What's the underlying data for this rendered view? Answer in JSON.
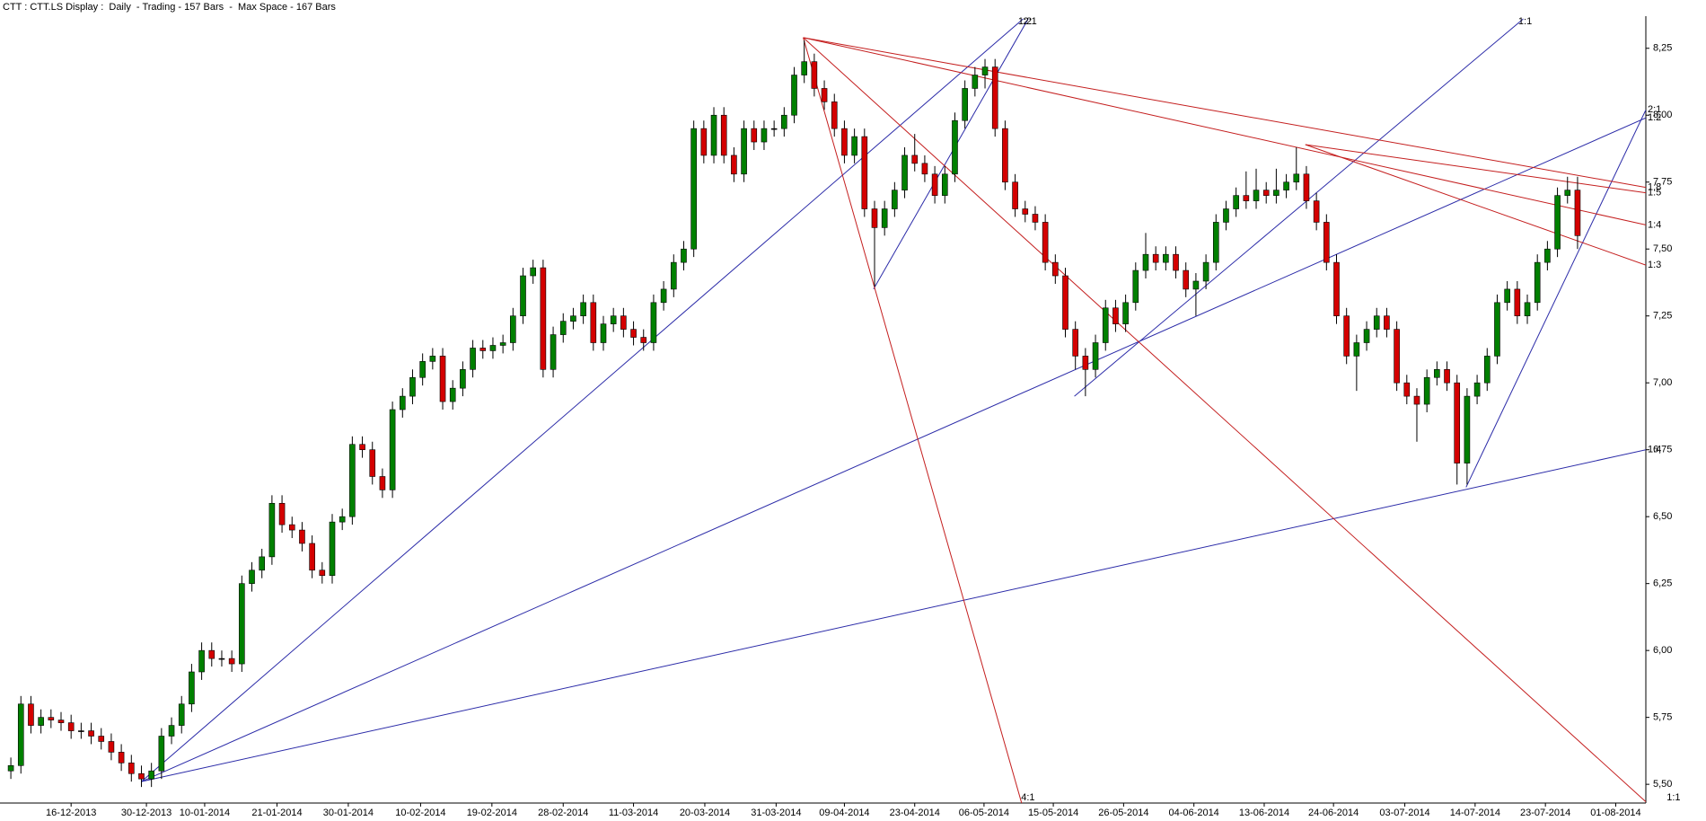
{
  "chart_data": {
    "type": "candlestick",
    "title": "CTT : CTT.LS Display :  Daily  - Trading - 157 Bars  -  Max Space - 167 Bars",
    "up_color": "#008000",
    "down_color": "#d40000",
    "xlim": [
      -1.08,
      162.8
    ],
    "ylim": [
      5.43,
      8.37
    ],
    "yticks": [
      {
        "value": 5.5,
        "label": "5,50"
      },
      {
        "value": 5.75,
        "label": "5,75"
      },
      {
        "value": 6,
        "label": "6,00"
      },
      {
        "value": 6.25,
        "label": "6,25"
      },
      {
        "value": 6.5,
        "label": "6,50"
      },
      {
        "value": 6.75,
        "label": "6,75"
      },
      {
        "value": 7,
        "label": "7,00"
      },
      {
        "value": 7.25,
        "label": "7,25"
      },
      {
        "value": 7.5,
        "label": "7,50"
      },
      {
        "value": 7.75,
        "label": "7,75"
      },
      {
        "value": 8,
        "label": "8,00"
      },
      {
        "value": 8.25,
        "label": "8,25"
      }
    ],
    "xticks": [
      {
        "value": 6,
        "label": "16-12-2013"
      },
      {
        "value": 13.5,
        "label": "30-12-2013"
      },
      {
        "value": 19.3,
        "label": "10-01-2014"
      },
      {
        "value": 26.5,
        "label": "21-01-2014"
      },
      {
        "value": 33.6,
        "label": "30-01-2014"
      },
      {
        "value": 40.8,
        "label": "10-02-2014"
      },
      {
        "value": 47.9,
        "label": "19-02-2014"
      },
      {
        "value": 55,
        "label": "28-02-2014"
      },
      {
        "value": 62,
        "label": "11-03-2014"
      },
      {
        "value": 69.1,
        "label": "20-03-2014"
      },
      {
        "value": 76.2,
        "label": "31-03-2014"
      },
      {
        "value": 83,
        "label": "09-04-2014"
      },
      {
        "value": 90,
        "label": "23-04-2014"
      },
      {
        "value": 96.9,
        "label": "06-05-2014"
      },
      {
        "value": 103.8,
        "label": "15-05-2014"
      },
      {
        "value": 110.8,
        "label": "26-05-2014"
      },
      {
        "value": 117.8,
        "label": "04-06-2014"
      },
      {
        "value": 124.8,
        "label": "13-06-2014"
      },
      {
        "value": 131.7,
        "label": "24-06-2014"
      },
      {
        "value": 138.8,
        "label": "03-07-2014"
      },
      {
        "value": 145.8,
        "label": "14-07-2014"
      },
      {
        "value": 152.8,
        "label": "23-07-2014"
      },
      {
        "value": 159.8,
        "label": "01-08-2014"
      }
    ],
    "ohlc": [
      [
        5.55,
        5.6,
        5.52,
        5.57
      ],
      [
        5.57,
        5.83,
        5.54,
        5.8
      ],
      [
        5.8,
        5.83,
        5.69,
        5.72
      ],
      [
        5.72,
        5.78,
        5.69,
        5.75
      ],
      [
        5.75,
        5.78,
        5.71,
        5.74
      ],
      [
        5.74,
        5.77,
        5.7,
        5.73
      ],
      [
        5.73,
        5.76,
        5.67,
        5.7
      ],
      [
        5.7,
        5.73,
        5.67,
        5.7
      ],
      [
        5.7,
        5.73,
        5.65,
        5.68
      ],
      [
        5.68,
        5.71,
        5.63,
        5.66
      ],
      [
        5.66,
        5.69,
        5.59,
        5.62
      ],
      [
        5.62,
        5.65,
        5.55,
        5.58
      ],
      [
        5.58,
        5.61,
        5.51,
        5.54
      ],
      [
        5.54,
        5.57,
        5.49,
        5.52
      ],
      [
        5.52,
        5.58,
        5.49,
        5.55
      ],
      [
        5.55,
        5.71,
        5.52,
        5.68
      ],
      [
        5.68,
        5.75,
        5.65,
        5.72
      ],
      [
        5.72,
        5.83,
        5.69,
        5.8
      ],
      [
        5.8,
        5.95,
        5.77,
        5.92
      ],
      [
        5.92,
        6.03,
        5.89,
        6
      ],
      [
        6,
        6.03,
        5.94,
        5.97
      ],
      [
        5.97,
        6,
        5.94,
        5.97
      ],
      [
        5.97,
        6,
        5.92,
        5.95
      ],
      [
        5.95,
        6.28,
        5.92,
        6.25
      ],
      [
        6.25,
        6.33,
        6.22,
        6.3
      ],
      [
        6.3,
        6.38,
        6.27,
        6.35
      ],
      [
        6.35,
        6.58,
        6.32,
        6.55
      ],
      [
        6.55,
        6.58,
        6.44,
        6.47
      ],
      [
        6.47,
        6.5,
        6.42,
        6.45
      ],
      [
        6.45,
        6.48,
        6.37,
        6.4
      ],
      [
        6.4,
        6.43,
        6.27,
        6.3
      ],
      [
        6.3,
        6.33,
        6.25,
        6.28
      ],
      [
        6.28,
        6.51,
        6.25,
        6.48
      ],
      [
        6.48,
        6.53,
        6.45,
        6.5
      ],
      [
        6.5,
        6.8,
        6.47,
        6.77
      ],
      [
        6.77,
        6.8,
        6.72,
        6.75
      ],
      [
        6.75,
        6.78,
        6.62,
        6.65
      ],
      [
        6.65,
        6.68,
        6.57,
        6.6
      ],
      [
        6.6,
        6.93,
        6.57,
        6.9
      ],
      [
        6.9,
        6.98,
        6.87,
        6.95
      ],
      [
        6.95,
        7.05,
        6.92,
        7.02
      ],
      [
        7.02,
        7.11,
        6.99,
        7.08
      ],
      [
        7.08,
        7.13,
        7.05,
        7.1
      ],
      [
        7.1,
        7.13,
        6.9,
        6.93
      ],
      [
        6.93,
        7.01,
        6.9,
        6.98
      ],
      [
        6.98,
        7.08,
        6.95,
        7.05
      ],
      [
        7.05,
        7.16,
        7.02,
        7.13
      ],
      [
        7.13,
        7.16,
        7.09,
        7.12
      ],
      [
        7.12,
        7.17,
        7.09,
        7.14
      ],
      [
        7.14,
        7.18,
        7.11,
        7.15
      ],
      [
        7.15,
        7.28,
        7.12,
        7.25
      ],
      [
        7.25,
        7.43,
        7.22,
        7.4
      ],
      [
        7.4,
        7.46,
        7.37,
        7.43
      ],
      [
        7.43,
        7.46,
        7.02,
        7.05
      ],
      [
        7.05,
        7.21,
        7.02,
        7.18
      ],
      [
        7.18,
        7.26,
        7.15,
        7.23
      ],
      [
        7.23,
        7.28,
        7.2,
        7.25
      ],
      [
        7.25,
        7.33,
        7.22,
        7.3
      ],
      [
        7.3,
        7.33,
        7.12,
        7.15
      ],
      [
        7.15,
        7.25,
        7.12,
        7.22
      ],
      [
        7.22,
        7.28,
        7.19,
        7.25
      ],
      [
        7.25,
        7.28,
        7.17,
        7.2
      ],
      [
        7.2,
        7.23,
        7.14,
        7.17
      ],
      [
        7.17,
        7.2,
        7.12,
        7.15
      ],
      [
        7.15,
        7.33,
        7.12,
        7.3
      ],
      [
        7.3,
        7.38,
        7.27,
        7.35
      ],
      [
        7.35,
        7.48,
        7.32,
        7.45
      ],
      [
        7.45,
        7.53,
        7.42,
        7.5
      ],
      [
        7.5,
        7.98,
        7.47,
        7.95
      ],
      [
        7.95,
        7.98,
        7.82,
        7.85
      ],
      [
        7.85,
        8.03,
        7.82,
        8
      ],
      [
        8,
        8.03,
        7.82,
        7.85
      ],
      [
        7.85,
        7.88,
        7.75,
        7.78
      ],
      [
        7.78,
        7.98,
        7.75,
        7.95
      ],
      [
        7.95,
        7.98,
        7.87,
        7.9
      ],
      [
        7.9,
        7.98,
        7.87,
        7.95
      ],
      [
        7.95,
        7.98,
        7.92,
        7.95
      ],
      [
        7.95,
        8.03,
        7.92,
        8
      ],
      [
        8,
        8.18,
        7.97,
        8.15
      ],
      [
        8.15,
        8.28,
        8.12,
        8.2
      ],
      [
        8.2,
        8.23,
        8.07,
        8.1
      ],
      [
        8.1,
        8.13,
        8.02,
        8.05
      ],
      [
        8.05,
        8.08,
        7.92,
        7.95
      ],
      [
        7.95,
        7.98,
        7.82,
        7.85
      ],
      [
        7.85,
        7.95,
        7.82,
        7.92
      ],
      [
        7.92,
        7.95,
        7.62,
        7.65
      ],
      [
        7.65,
        7.68,
        7.36,
        7.58
      ],
      [
        7.58,
        7.68,
        7.55,
        7.65
      ],
      [
        7.65,
        7.75,
        7.62,
        7.72
      ],
      [
        7.72,
        7.88,
        7.69,
        7.85
      ],
      [
        7.85,
        7.93,
        7.79,
        7.82
      ],
      [
        7.82,
        7.85,
        7.75,
        7.78
      ],
      [
        7.78,
        7.81,
        7.67,
        7.7
      ],
      [
        7.7,
        7.81,
        7.67,
        7.78
      ],
      [
        7.78,
        8.01,
        7.75,
        7.98
      ],
      [
        7.98,
        8.13,
        7.95,
        8.1
      ],
      [
        8.1,
        8.18,
        8.07,
        8.15
      ],
      [
        8.15,
        8.21,
        8.1,
        8.18
      ],
      [
        8.18,
        8.21,
        7.92,
        7.95
      ],
      [
        7.95,
        7.98,
        7.72,
        7.75
      ],
      [
        7.75,
        7.78,
        7.62,
        7.65
      ],
      [
        7.65,
        7.68,
        7.6,
        7.63
      ],
      [
        7.63,
        7.66,
        7.57,
        7.6
      ],
      [
        7.6,
        7.63,
        7.42,
        7.45
      ],
      [
        7.45,
        7.48,
        7.37,
        7.4
      ],
      [
        7.4,
        7.43,
        7.17,
        7.2
      ],
      [
        7.2,
        7.23,
        7.05,
        7.1
      ],
      [
        7.1,
        7.13,
        6.95,
        7.05
      ],
      [
        7.05,
        7.18,
        7.02,
        7.15
      ],
      [
        7.15,
        7.31,
        7.12,
        7.28
      ],
      [
        7.28,
        7.31,
        7.19,
        7.22
      ],
      [
        7.22,
        7.33,
        7.19,
        7.3
      ],
      [
        7.3,
        7.45,
        7.27,
        7.42
      ],
      [
        7.42,
        7.56,
        7.39,
        7.48
      ],
      [
        7.48,
        7.51,
        7.42,
        7.45
      ],
      [
        7.45,
        7.51,
        7.42,
        7.48
      ],
      [
        7.48,
        7.51,
        7.39,
        7.42
      ],
      [
        7.42,
        7.45,
        7.32,
        7.35
      ],
      [
        7.35,
        7.41,
        7.25,
        7.38
      ],
      [
        7.38,
        7.48,
        7.35,
        7.45
      ],
      [
        7.45,
        7.63,
        7.42,
        7.6
      ],
      [
        7.6,
        7.68,
        7.57,
        7.65
      ],
      [
        7.65,
        7.73,
        7.62,
        7.7
      ],
      [
        7.7,
        7.79,
        7.65,
        7.68
      ],
      [
        7.68,
        7.8,
        7.65,
        7.72
      ],
      [
        7.72,
        7.75,
        7.67,
        7.7
      ],
      [
        7.7,
        7.8,
        7.67,
        7.72
      ],
      [
        7.72,
        7.78,
        7.69,
        7.75
      ],
      [
        7.75,
        7.88,
        7.72,
        7.78
      ],
      [
        7.78,
        7.81,
        7.65,
        7.68
      ],
      [
        7.68,
        7.71,
        7.57,
        7.6
      ],
      [
        7.6,
        7.63,
        7.42,
        7.45
      ],
      [
        7.45,
        7.48,
        7.22,
        7.25
      ],
      [
        7.25,
        7.28,
        7.07,
        7.1
      ],
      [
        7.1,
        7.18,
        6.97,
        7.15
      ],
      [
        7.15,
        7.23,
        7.12,
        7.2
      ],
      [
        7.2,
        7.28,
        7.17,
        7.25
      ],
      [
        7.25,
        7.28,
        7.17,
        7.2
      ],
      [
        7.2,
        7.23,
        6.97,
        7
      ],
      [
        7,
        7.03,
        6.92,
        6.95
      ],
      [
        6.95,
        6.98,
        6.78,
        6.92
      ],
      [
        6.92,
        7.05,
        6.89,
        7.02
      ],
      [
        7.02,
        7.08,
        6.99,
        7.05
      ],
      [
        7.05,
        7.08,
        6.97,
        7
      ],
      [
        7,
        7.03,
        6.62,
        6.7
      ],
      [
        6.7,
        6.98,
        6.62,
        6.95
      ],
      [
        6.95,
        7.03,
        6.92,
        7
      ],
      [
        7,
        7.13,
        6.97,
        7.1
      ],
      [
        7.1,
        7.33,
        7.07,
        7.3
      ],
      [
        7.3,
        7.38,
        7.27,
        7.35
      ],
      [
        7.35,
        7.38,
        7.22,
        7.25
      ],
      [
        7.25,
        7.33,
        7.22,
        7.3
      ],
      [
        7.3,
        7.48,
        7.27,
        7.45
      ],
      [
        7.45,
        7.53,
        7.42,
        7.5
      ],
      [
        7.5,
        7.73,
        7.47,
        7.7
      ],
      [
        7.7,
        7.77,
        7.67,
        7.72
      ],
      [
        7.72,
        7.77,
        7.5,
        7.55
      ]
    ],
    "overlays": [
      {
        "color": "#2b2ba8",
        "points": [
          [
            13,
            5.51
          ],
          [
            100.8,
            8.36
          ]
        ],
        "label": "1:2"
      },
      {
        "color": "#2b2ba8",
        "points": [
          [
            85.9,
            7.35
          ],
          [
            101.3,
            8.36
          ]
        ],
        "label": "2:1"
      },
      {
        "color": "#2b2ba8",
        "points": [
          [
            13,
            5.51
          ],
          [
            162.8,
            7.99
          ]
        ],
        "label": "1:2"
      },
      {
        "color": "#2b2ba8",
        "points": [
          [
            13,
            5.51
          ],
          [
            162.8,
            6.75
          ]
        ],
        "label": "1:4"
      },
      {
        "color": "#2b2ba8",
        "points": [
          [
            105.9,
            6.95
          ],
          [
            150.6,
            8.36
          ]
        ],
        "label": "1:1"
      },
      {
        "color": "#2b2ba8",
        "points": [
          [
            144.9,
            6.61
          ],
          [
            162.8,
            8.02
          ]
        ],
        "label": "2:1"
      },
      {
        "color": "#c41e1e",
        "points": [
          [
            78.9,
            8.29
          ],
          [
            101.1,
            5.37
          ]
        ],
        "label": "4:1"
      },
      {
        "color": "#c41e1e",
        "points": [
          [
            78.9,
            8.29
          ],
          [
            164.7,
            5.37
          ]
        ],
        "label": "1:1"
      },
      {
        "color": "#c41e1e",
        "points": [
          [
            78.9,
            8.29
          ],
          [
            162.8,
            7.73
          ]
        ],
        "label": "1:8"
      },
      {
        "color": "#c41e1e",
        "points": [
          [
            78.9,
            8.29
          ],
          [
            162.8,
            7.59
          ]
        ],
        "label": "1:4"
      },
      {
        "color": "#c41e1e",
        "points": [
          [
            128.9,
            7.89
          ],
          [
            162.8,
            7.71
          ]
        ],
        "label": "1:5"
      },
      {
        "color": "#c41e1e",
        "points": [
          [
            128.9,
            7.89
          ],
          [
            162.8,
            7.44
          ]
        ],
        "label": "1:3"
      }
    ]
  }
}
